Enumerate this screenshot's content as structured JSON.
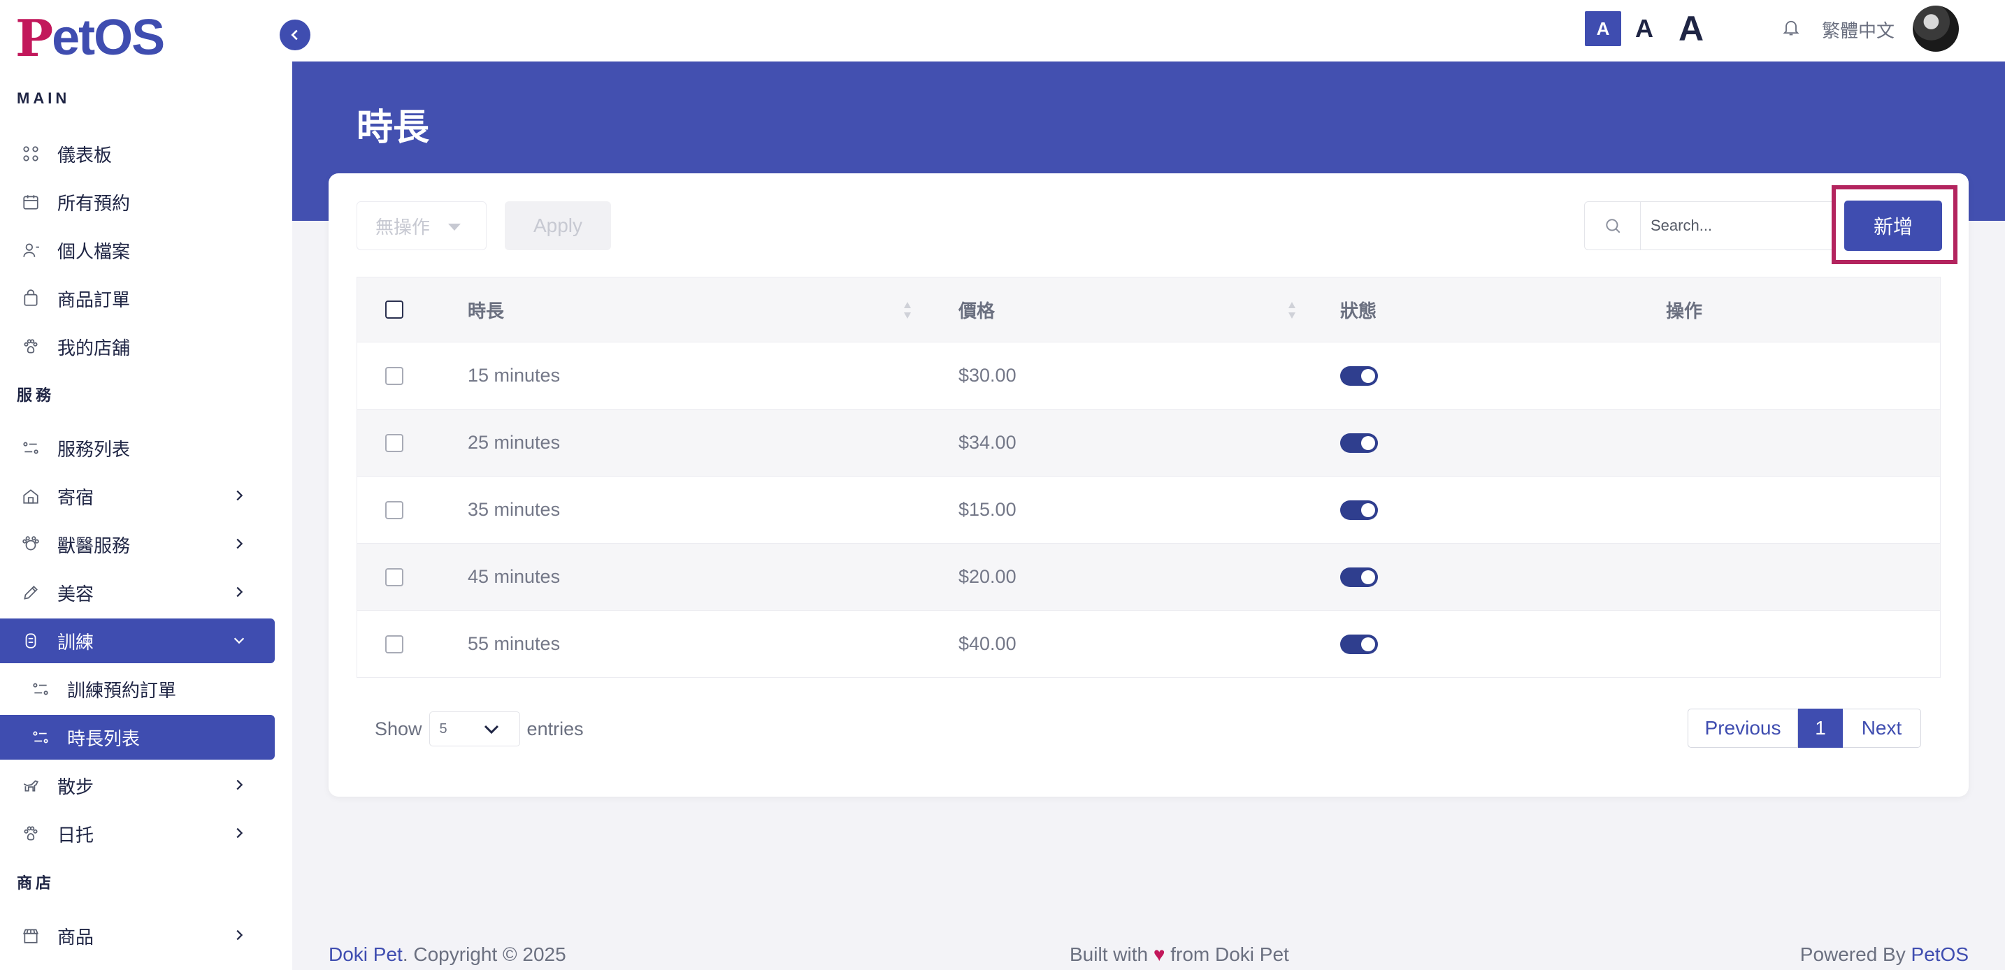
{
  "app": {
    "logo_p": "P",
    "logo_rest": "etOS"
  },
  "topbar": {
    "font_small": "A",
    "font_medium": "A",
    "font_large": "A",
    "language": "繁體中文"
  },
  "sidebar": {
    "sections": {
      "main": "MAIN",
      "services": "服務",
      "shop": "商店"
    },
    "items": [
      {
        "label": "儀表板",
        "icon": "dashboard-icon"
      },
      {
        "label": "所有預約",
        "icon": "calendar-icon"
      },
      {
        "label": "個人檔案",
        "icon": "user-icon"
      },
      {
        "label": "商品訂單",
        "icon": "bag-icon"
      },
      {
        "label": "我的店舖",
        "icon": "paw-icon"
      },
      {
        "label": "服務列表",
        "icon": "list-icon"
      },
      {
        "label": "寄宿",
        "icon": "home-icon"
      },
      {
        "label": "獸醫服務",
        "icon": "vet-icon"
      },
      {
        "label": "美容",
        "icon": "brush-icon"
      },
      {
        "label": "訓練",
        "icon": "training-icon"
      },
      {
        "label": "訓練預約訂單",
        "icon": "list-icon"
      },
      {
        "label": "時長列表",
        "icon": "list-icon"
      },
      {
        "label": "散步",
        "icon": "walk-icon"
      },
      {
        "label": "日托",
        "icon": "daycare-icon"
      },
      {
        "label": "商品",
        "icon": "store-icon"
      }
    ]
  },
  "page": {
    "title": "時長"
  },
  "toolbar": {
    "bulk_action": "無操作",
    "apply_label": "Apply",
    "search_placeholder": "Search...",
    "add_label": "新增"
  },
  "table": {
    "headers": {
      "duration": "時長",
      "price": "價格",
      "status": "狀態",
      "actions": "操作"
    },
    "rows": [
      {
        "duration": "15 minutes",
        "price": "$30.00",
        "status": true
      },
      {
        "duration": "25 minutes",
        "price": "$34.00",
        "status": true
      },
      {
        "duration": "35 minutes",
        "price": "$15.00",
        "status": true
      },
      {
        "duration": "45 minutes",
        "price": "$20.00",
        "status": true
      },
      {
        "duration": "55 minutes",
        "price": "$40.00",
        "status": true
      }
    ]
  },
  "pagination": {
    "show_label": "Show",
    "entries_value": "5",
    "entries_label": "entries",
    "previous": "Previous",
    "current": "1",
    "next": "Next"
  },
  "footer": {
    "brand": "Doki Pet",
    "copyright": ". Copyright © 2025",
    "built_prefix": "Built with ",
    "heart": "♥",
    "built_suffix": " from Doki Pet",
    "powered_prefix": "Powered By ",
    "powered_brand": "PetOS"
  },
  "colors": {
    "primary": "#3f4db0",
    "banner": "#4350b0",
    "highlight": "#b3245e",
    "logo_accent": "#c2185b"
  }
}
